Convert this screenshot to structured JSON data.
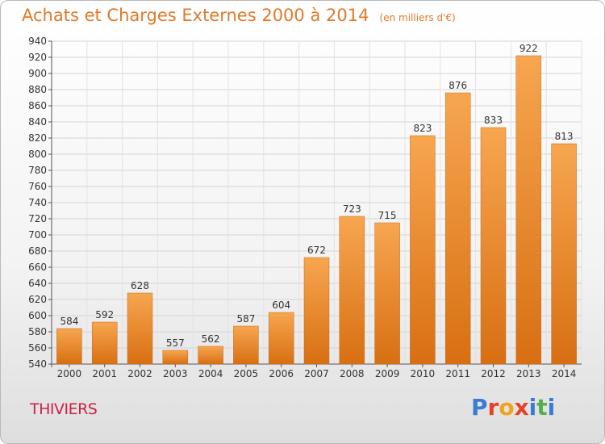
{
  "header": {
    "title": "Achats et Charges Externes 2000 à 2014",
    "subtitle": "(en milliers d'€)"
  },
  "footer": {
    "city": "THIVIERS",
    "logo_letters": [
      "P",
      "r",
      "o",
      "x",
      "i",
      "t",
      "i"
    ],
    "logo_colors": [
      "#3a7bd5",
      "#e8402a",
      "#f2a21b",
      "#e8402a",
      "#3a7bd5",
      "#56b04a",
      "#3a7bd5"
    ]
  },
  "chart_data": {
    "type": "bar",
    "categories": [
      "2000",
      "2001",
      "2002",
      "2003",
      "2004",
      "2005",
      "2006",
      "2007",
      "2008",
      "2009",
      "2010",
      "2011",
      "2012",
      "2013",
      "2014"
    ],
    "values": [
      584,
      592,
      628,
      557,
      562,
      587,
      604,
      672,
      723,
      715,
      823,
      876,
      833,
      922,
      813
    ],
    "title": "Achats et Charges Externes 2000 à 2014",
    "subtitle": "(en milliers d'€)",
    "xlabel": "",
    "ylabel": "",
    "ylim": [
      540,
      940
    ],
    "ytick_step": 20,
    "grid": true,
    "bar_color": "#f0932e"
  }
}
